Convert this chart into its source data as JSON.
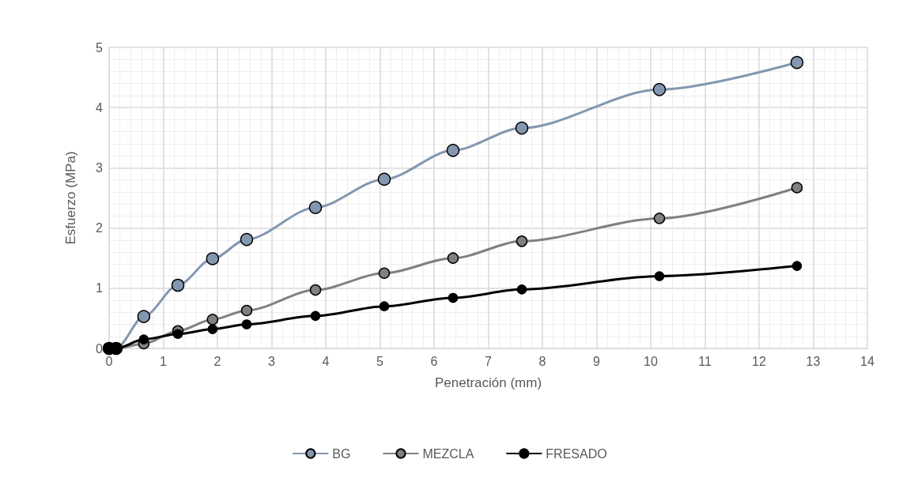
{
  "chart_data": {
    "type": "line",
    "xlabel": "Penetración (mm)",
    "ylabel": "Esfuerzo (MPa)",
    "x": [
      0,
      0.13,
      0.64,
      1.27,
      1.91,
      2.54,
      3.81,
      5.08,
      6.35,
      7.62,
      10.16,
      12.7
    ],
    "series": [
      {
        "name": "BG",
        "color": "#8497b0",
        "values": [
          0,
          0,
          0.53,
          1.05,
          1.49,
          1.81,
          2.34,
          2.81,
          3.29,
          3.66,
          4.3,
          4.75
        ]
      },
      {
        "name": "MEZCLA",
        "color": "#808080",
        "values": [
          0,
          0,
          0.08,
          0.29,
          0.48,
          0.63,
          0.97,
          1.25,
          1.5,
          1.78,
          2.16,
          2.67
        ]
      },
      {
        "name": "FRESADO",
        "color": "#000000",
        "values": [
          0,
          0,
          0.15,
          0.24,
          0.32,
          0.4,
          0.54,
          0.7,
          0.84,
          0.98,
          1.2,
          1.37
        ]
      }
    ],
    "xlim": [
      0,
      14
    ],
    "xticks": [
      0,
      1,
      2,
      3,
      4,
      5,
      6,
      7,
      8,
      9,
      10,
      11,
      12,
      13,
      14
    ],
    "ylim": [
      0,
      5
    ],
    "yticks": [
      0,
      1,
      2,
      3,
      4,
      5
    ],
    "grid": true,
    "legend": "bottom",
    "marker": "circle",
    "line_style": "solid"
  }
}
